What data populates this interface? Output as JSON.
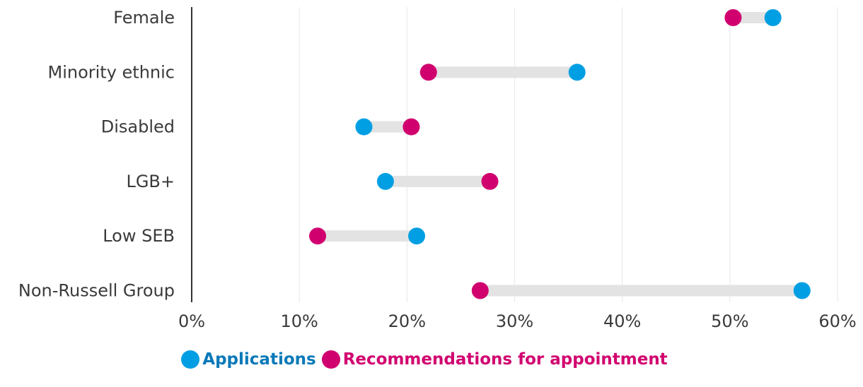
{
  "chart_data": {
    "type": "dumbbell",
    "categories": [
      "Female",
      "Minority ethnic",
      "Disabled",
      "LGB+",
      "Low SEB",
      "Non-Russell Group"
    ],
    "series": [
      {
        "name": "Applications",
        "values": [
          54,
          35.8,
          16,
          18,
          20.9,
          56.7
        ],
        "color": "#009fe3"
      },
      {
        "name": "Recommendations for appointment",
        "values": [
          50.3,
          22,
          20.4,
          27.7,
          11.7,
          26.8
        ],
        "color": "#d1006f"
      }
    ],
    "x_ticks": [
      "0%",
      "10%",
      "20%",
      "30%",
      "40%",
      "50%",
      "60%"
    ],
    "xlim": [
      0,
      60
    ],
    "grid": true,
    "legend_position": "bottom-center",
    "connector_color": "#e3e3e3"
  }
}
